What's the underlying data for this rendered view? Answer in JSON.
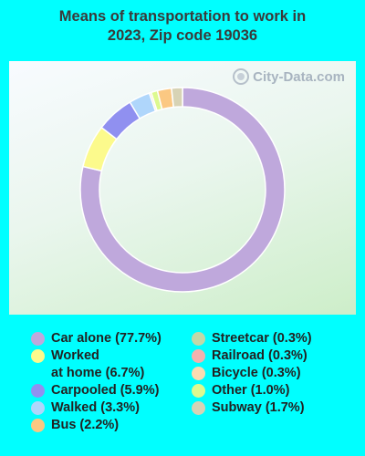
{
  "title_line1": "Means of transportation to work in",
  "title_line2": "2023, Zip code 19036",
  "watermark": "City-Data.com",
  "chart_data": {
    "type": "pie",
    "title": "Means of transportation to work in 2023, Zip code 19036",
    "legend_position": "bottom",
    "categories": [
      "Car alone",
      "Worked at home",
      "Carpooled",
      "Walked",
      "Bus",
      "Streetcar",
      "Railroad",
      "Bicycle",
      "Other",
      "Subway"
    ],
    "values": [
      77.7,
      6.7,
      5.9,
      3.3,
      2.2,
      0.3,
      0.3,
      0.3,
      1.0,
      1.7
    ],
    "colors": [
      "#bfa8dc",
      "#fcfa8c",
      "#9090f0",
      "#afd6fb",
      "#fbc882",
      "#c2d8a8",
      "#f3b2ae",
      "#fbdcb2",
      "#ddf98f",
      "#d7d3b5"
    ],
    "draw_order": [
      0,
      1,
      2,
      3,
      7,
      8,
      4,
      9
    ],
    "legend_labels": [
      "Car alone (77.7%)",
      "Worked",
      "at home (6.7%)",
      "Carpooled (5.9%)",
      "Walked (3.3%)",
      "Bus (2.2%)",
      "Streetcar (0.3%)",
      "Railroad (0.3%)",
      "Bicycle (0.3%)",
      "Other (1.0%)",
      "Subway (1.7%)"
    ]
  }
}
